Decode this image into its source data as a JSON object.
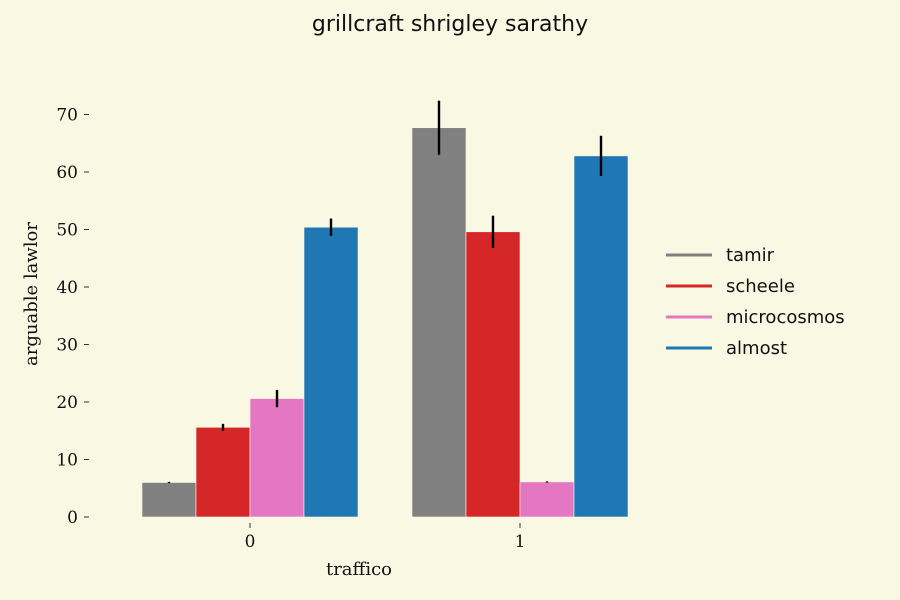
{
  "chart_data": {
    "type": "bar",
    "title": "grillcraft shrigley sarathy",
    "xlabel": "traffico",
    "ylabel": "arguable lawlor",
    "categories": [
      "0",
      "1"
    ],
    "ylim": [
      0,
      76
    ],
    "yticks": [
      0,
      10,
      20,
      30,
      40,
      50,
      60,
      70
    ],
    "grid": false,
    "legend_position": "right",
    "series": [
      {
        "name": "tamir",
        "color": "#808080",
        "values": [
          6.0,
          67.7
        ],
        "errors": [
          0.1,
          4.7
        ]
      },
      {
        "name": "scheele",
        "color": "#d62728",
        "values": [
          15.6,
          49.6
        ],
        "errors": [
          0.6,
          2.8
        ]
      },
      {
        "name": "microcosmos",
        "color": "#e377c2",
        "values": [
          20.6,
          6.1
        ],
        "errors": [
          1.5,
          0.1
        ]
      },
      {
        "name": "almost",
        "color": "#1f77b4",
        "values": [
          50.4,
          62.8
        ],
        "errors": [
          1.5,
          3.5
        ]
      }
    ]
  }
}
